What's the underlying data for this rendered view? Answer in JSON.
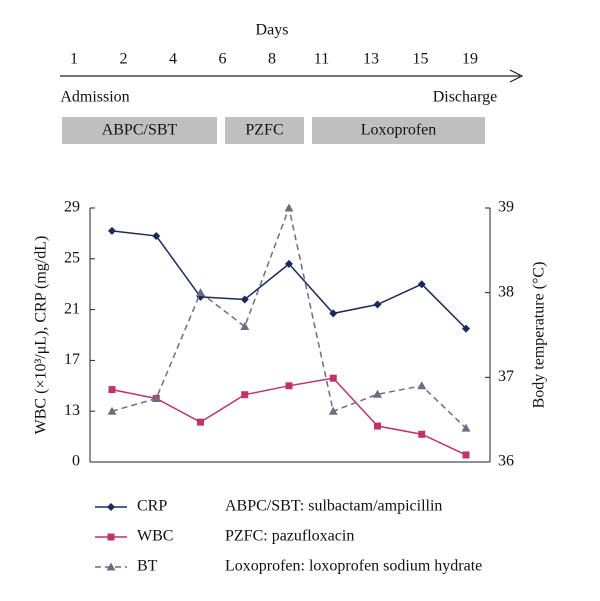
{
  "timeline": {
    "title": "Days",
    "days": [
      "1",
      "2",
      "4",
      "6",
      "8",
      "11",
      "13",
      "15",
      "19"
    ],
    "start": "Admission",
    "end": "Discharge",
    "treatments": [
      "ABPC/SBT",
      "PZFC",
      "Loxoprofen"
    ]
  },
  "chart_data": {
    "type": "line",
    "ylabel": "WBC (×10³/μL), CRP (mg/dL)",
    "y2label": "Body temperature (°C)",
    "ylim": [
      0,
      29
    ],
    "yticks": [
      0,
      13,
      17,
      21,
      25,
      29
    ],
    "y2lim": [
      36,
      39
    ],
    "y2ticks": [
      36,
      37,
      38,
      39
    ],
    "series": [
      {
        "name": "CRP",
        "color": "#1b2a5c",
        "marker": "diamond",
        "values": [
          27.2,
          26.8,
          22.0,
          21.8,
          24.6,
          20.7,
          21.4,
          23.0,
          19.5
        ]
      },
      {
        "name": "WBC",
        "color": "#c0336a",
        "marker": "square",
        "values": [
          14.7,
          14.0,
          10.2,
          14.3,
          15.0,
          15.6,
          9.2,
          7.1,
          1.8
        ]
      },
      {
        "name": "BT",
        "color": "#6a6f80",
        "marker": "triangle",
        "dashed": true,
        "axis": "y2",
        "values": [
          36.6,
          36.75,
          38.0,
          37.6,
          39.0,
          36.6,
          36.8,
          36.9,
          36.4
        ]
      }
    ]
  },
  "notes": [
    "ABPC/SBT: sulbactam/ampicillin",
    "PZFC: pazufloxacin",
    "Loxoprofen: loxoprofen sodium hydrate"
  ]
}
